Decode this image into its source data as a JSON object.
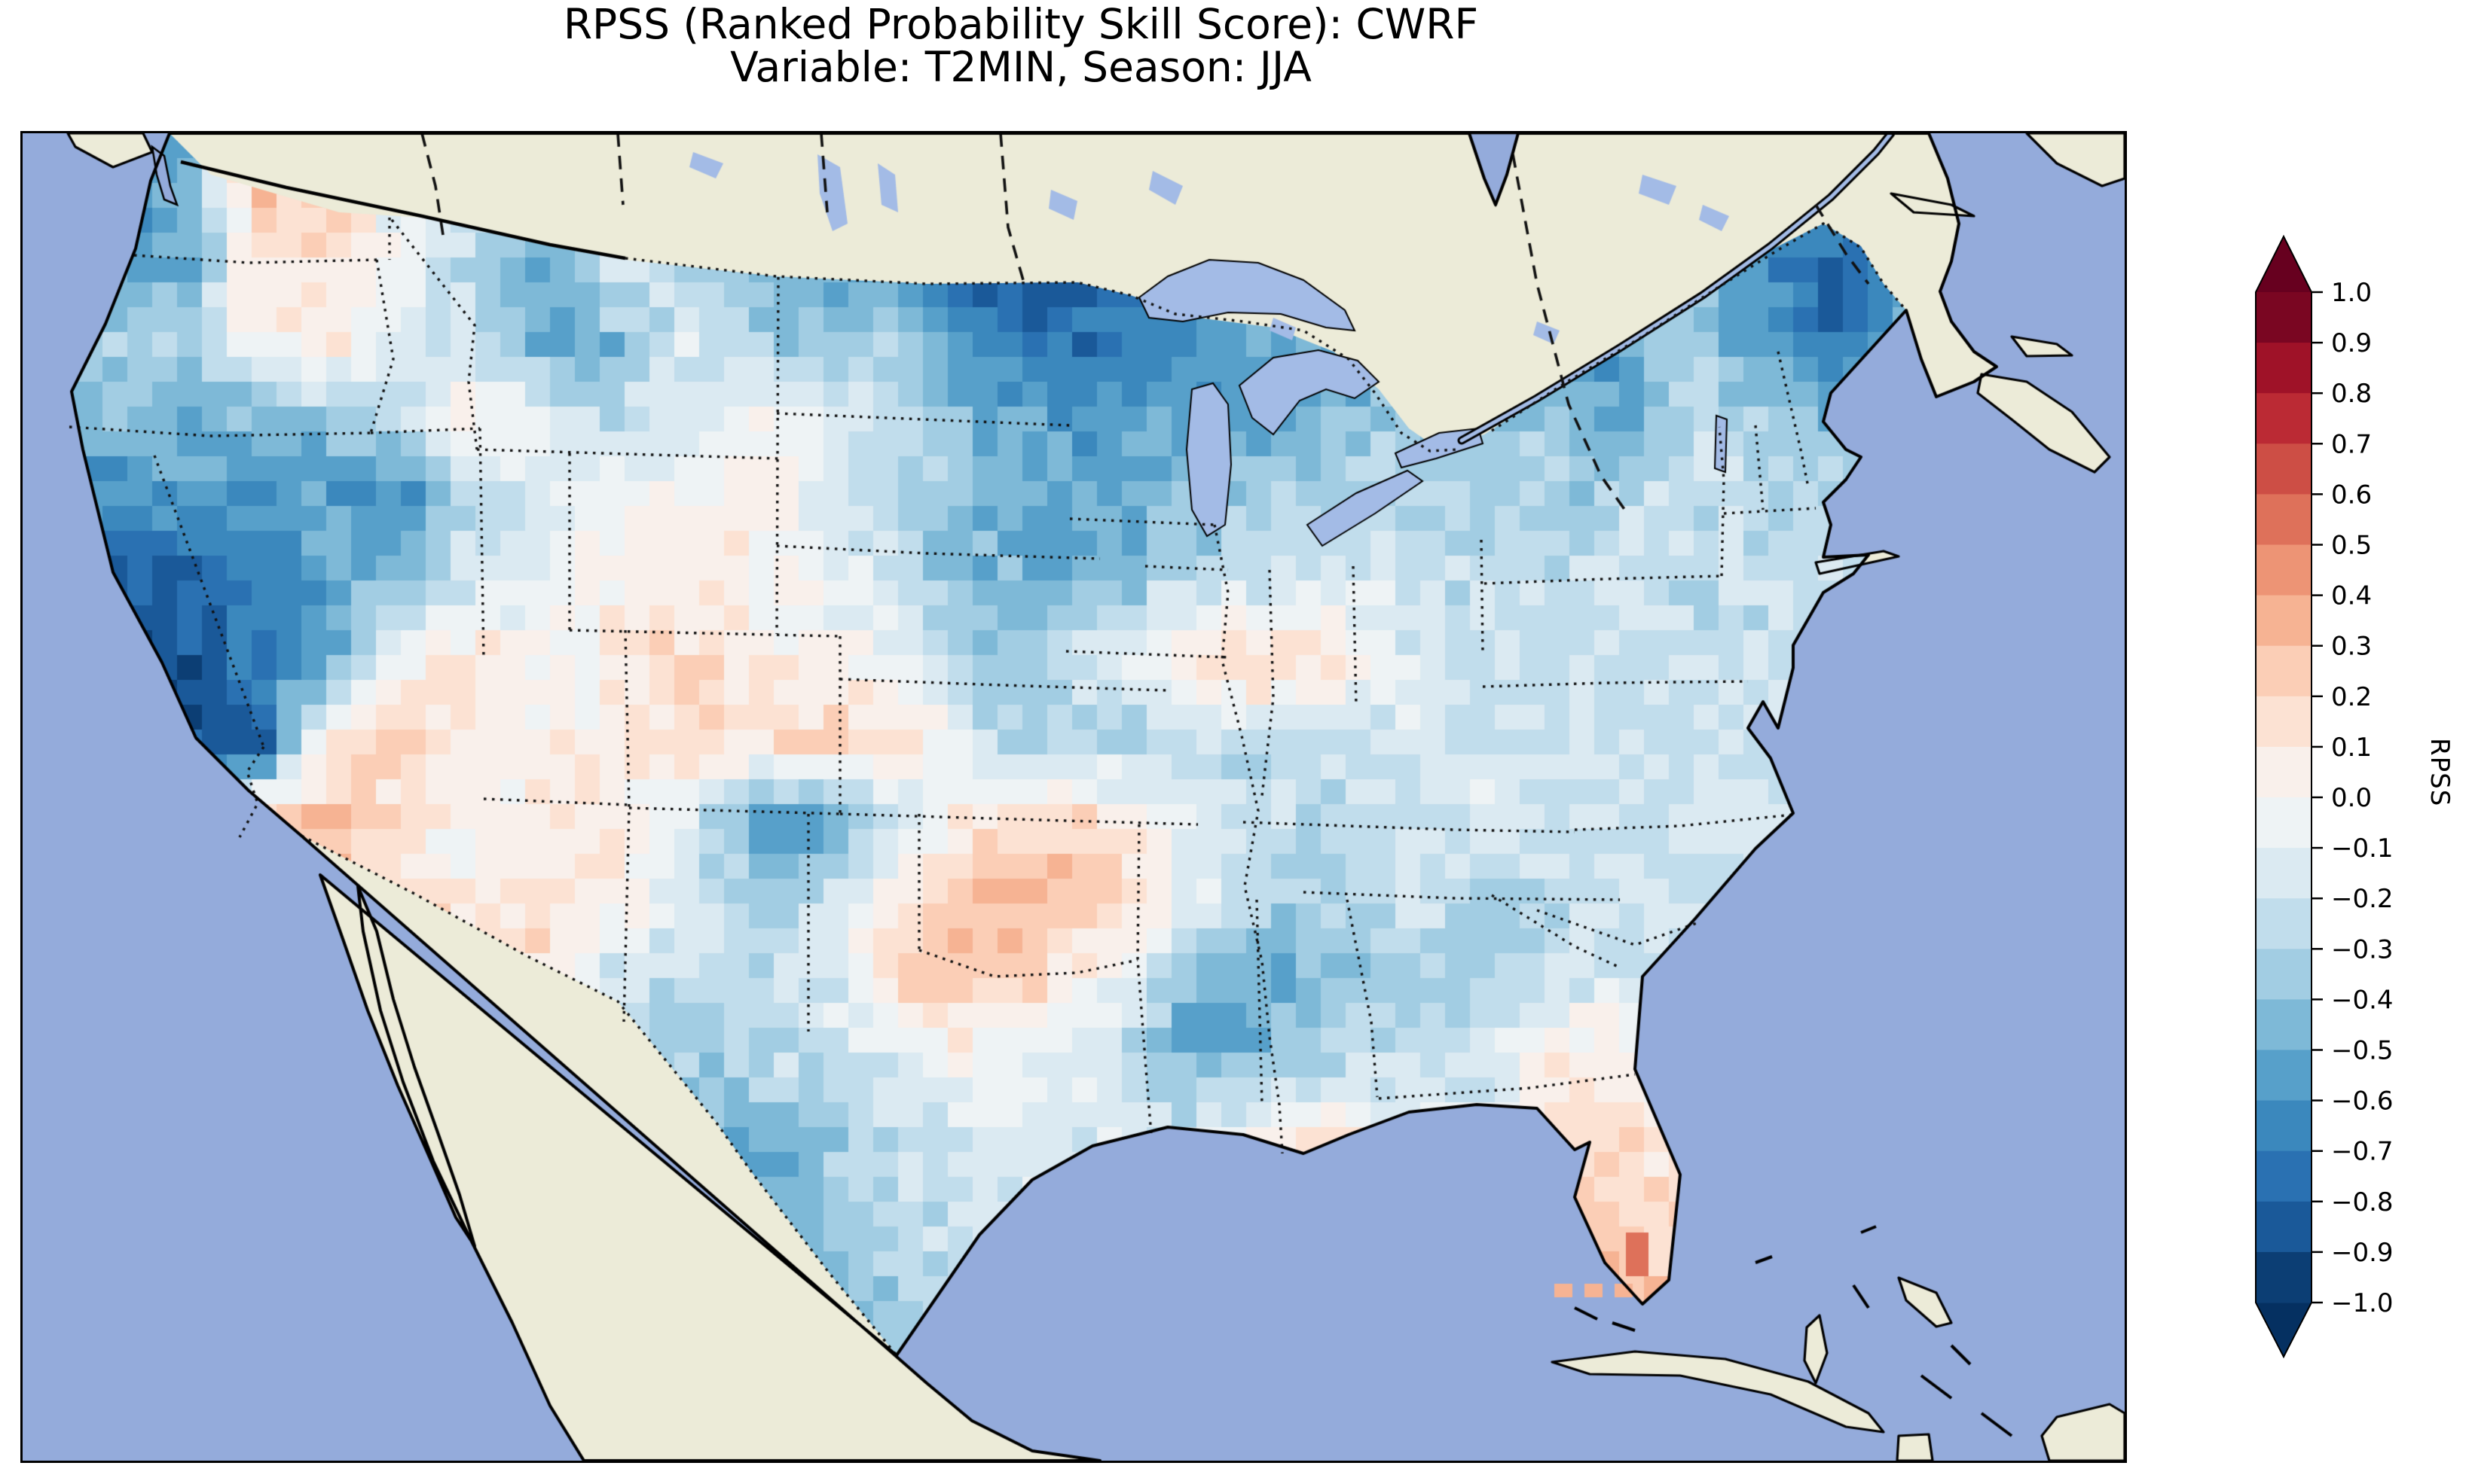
{
  "title": {
    "line1": "RPSS (Ranked Probability Skill Score): CWRF",
    "line2": "Variable: T2MIN, Season: JJA"
  },
  "chart_data": {
    "type": "heatmap",
    "metric": "RPSS (Ranked Probability Skill Score)",
    "model": "CWRF",
    "variable": "T2MIN",
    "season": "JJA",
    "region": "Continental United States (CONUS) on a North-America map",
    "colorbar": {
      "label": "RPSS",
      "vmin": -1.0,
      "vmax": 1.0,
      "bin_size": 0.1,
      "extend": "both",
      "colormap": "RdBu_r (diverging, red = positive skill, blue = negative skill)",
      "ticks": [
        "1.0",
        "0.9",
        "0.8",
        "0.7",
        "0.6",
        "0.5",
        "0.4",
        "0.3",
        "0.2",
        "0.1",
        "0.0",
        "−0.1",
        "−0.2",
        "−0.3",
        "−0.4",
        "−0.5",
        "−0.6",
        "−0.7",
        "−0.8",
        "−0.9",
        "−1.0"
      ],
      "bin_colors_low_to_high": [
        "#0C3E74",
        "#1A5999",
        "#2A71B2",
        "#3B88BD",
        "#57A0CA",
        "#7EB9D7",
        "#A2CDE3",
        "#C1DDEC",
        "#DBEAF2",
        "#EEF3F5",
        "#F9F0EB",
        "#FCE2D3",
        "#FBCEB6",
        "#F6B393",
        "#ED9475",
        "#DE715A",
        "#CD4E45",
        "#BB2A34",
        "#9F1228",
        "#7A0622"
      ],
      "arrow_color_top": "#67001f",
      "arrow_color_bottom": "#053061"
    },
    "map_colors": {
      "ocean": "#94ABDB",
      "land": "#ECEBD8",
      "lake": "#A3BBE6",
      "coastline": "#000000"
    },
    "grid": {
      "description": "Approximate RPSS values on a coarse 26x15 grid over CONUS (row 0 = north, col 0 = Pacific coast); the map shows these values binned in 0.1 steps. Mostly negative (blue) with strongest negative skill over California, the northern border of ND/MN, upper Midwest, Maine, south Texas and Mississippi/Alabama; weak positive (orange) patches over eastern WA/OR, Arizona/New Mexico, Oklahoma/Arkansas, Tennessee and peninsular Florida.",
      "cols": 26,
      "rows": 15,
      "values": [
        [
          -0.55,
          0.3,
          0.25,
          -0.05,
          -0.1,
          -0.35,
          -0.3,
          -0.45,
          -0.5,
          -0.55,
          -0.8,
          -0.95,
          -0.9,
          -0.85,
          -0.6,
          -0.5,
          -0.45,
          -0.4,
          -0.4,
          -0.3,
          -0.3,
          -0.45,
          -0.5,
          -0.55,
          -0.5,
          -0.4
        ],
        [
          -0.5,
          0.1,
          0.15,
          -0.1,
          -0.3,
          -0.5,
          -0.1,
          -0.3,
          -0.45,
          -0.5,
          -0.7,
          -0.85,
          -0.8,
          -0.75,
          -0.65,
          -0.55,
          -0.5,
          -0.4,
          -0.35,
          -0.35,
          -0.4,
          -0.35,
          -0.65,
          -0.8,
          -0.7,
          -0.5
        ],
        [
          -0.35,
          0.05,
          0.1,
          -0.15,
          -0.2,
          -0.55,
          -0.45,
          -0.15,
          -0.3,
          -0.4,
          -0.3,
          -0.6,
          -0.8,
          -0.7,
          -0.6,
          -0.5,
          -0.55,
          -0.45,
          -0.4,
          -0.45,
          -0.55,
          -0.3,
          -0.55,
          -0.75,
          -0.5,
          -0.4
        ],
        [
          -0.45,
          -0.45,
          -0.4,
          -0.25,
          0.1,
          -0.1,
          -0.25,
          -0.15,
          -0.05,
          -0.15,
          -0.3,
          -0.45,
          -0.55,
          -0.6,
          -0.5,
          -0.55,
          -0.45,
          -0.4,
          -0.45,
          -0.35,
          -0.6,
          -0.25,
          -0.3,
          -0.45,
          -0.4,
          -0.35
        ],
        [
          -0.6,
          -0.6,
          -0.55,
          -0.65,
          -0.3,
          -0.15,
          0.0,
          -0.05,
          0.05,
          -0.15,
          -0.3,
          -0.45,
          -0.55,
          -0.5,
          -0.45,
          -0.35,
          -0.3,
          -0.25,
          -0.3,
          -0.35,
          -0.3,
          -0.2,
          -0.3,
          -0.3,
          -0.3,
          -0.3
        ],
        [
          -0.8,
          -0.65,
          -0.5,
          -0.4,
          -0.15,
          -0.1,
          0.05,
          0.1,
          0.05,
          -0.1,
          -0.25,
          -0.45,
          -0.5,
          -0.4,
          -0.3,
          -0.2,
          -0.15,
          -0.2,
          -0.25,
          -0.2,
          -0.25,
          -0.25,
          -0.25,
          -0.25,
          -0.25,
          -0.25
        ],
        [
          -0.9,
          -0.7,
          -0.55,
          0.0,
          0.1,
          -0.05,
          0.1,
          0.15,
          0.1,
          0.0,
          -0.1,
          -0.35,
          -0.3,
          -0.15,
          0.2,
          0.25,
          0.1,
          -0.15,
          -0.25,
          -0.2,
          -0.2,
          -0.2,
          -0.2,
          -0.2,
          -0.2,
          -0.2
        ],
        [
          -0.85,
          -0.9,
          0.15,
          0.25,
          0.1,
          0.05,
          0.0,
          0.2,
          0.15,
          0.25,
          0.2,
          -0.2,
          -0.35,
          -0.3,
          -0.25,
          -0.3,
          -0.25,
          -0.15,
          -0.2,
          -0.2,
          -0.2,
          -0.2,
          -0.2,
          -0.2,
          -0.2,
          -0.2
        ],
        [
          -0.7,
          0.2,
          0.3,
          0.1,
          0.0,
          0.1,
          0.05,
          -0.1,
          -0.6,
          -0.55,
          -0.2,
          0.1,
          0.2,
          0.1,
          -0.1,
          -0.25,
          -0.3,
          -0.2,
          -0.15,
          -0.2,
          -0.2,
          -0.2,
          -0.2,
          -0.2,
          -0.2,
          -0.2
        ],
        [
          -0.5,
          0.1,
          0.25,
          0.15,
          0.1,
          0.2,
          0.1,
          -0.15,
          -0.35,
          -0.2,
          0.15,
          0.3,
          0.35,
          0.25,
          -0.1,
          -0.3,
          -0.35,
          -0.2,
          -0.25,
          -0.3,
          -0.2,
          -0.2,
          -0.2,
          -0.2,
          -0.2,
          -0.2
        ],
        [
          -0.4,
          0.1,
          0.15,
          0.1,
          0.15,
          0.1,
          -0.2,
          -0.3,
          -0.25,
          -0.15,
          0.2,
          0.25,
          0.15,
          -0.05,
          -0.45,
          -0.55,
          -0.4,
          -0.3,
          -0.35,
          -0.25,
          -0.15,
          -0.2,
          -0.2,
          -0.2,
          -0.2,
          -0.2
        ],
        [
          -0.35,
          0.05,
          0.1,
          0.1,
          0.1,
          0.0,
          -0.25,
          -0.35,
          -0.3,
          -0.2,
          -0.1,
          0.0,
          -0.1,
          -0.2,
          -0.5,
          -0.45,
          -0.3,
          -0.25,
          -0.2,
          0.1,
          0.05,
          -0.15,
          -0.2,
          -0.2,
          -0.2,
          -0.2
        ],
        [
          -0.3,
          0.0,
          0.05,
          0.05,
          0.05,
          -0.1,
          -0.3,
          -0.5,
          -0.45,
          -0.35,
          -0.2,
          -0.15,
          -0.1,
          -0.15,
          -0.2,
          0.1,
          0.15,
          0.0,
          -0.1,
          0.1,
          0.15,
          0.1,
          -0.2,
          -0.2,
          -0.2,
          -0.2
        ],
        [
          -0.3,
          0.0,
          0.0,
          0.0,
          0.0,
          -0.15,
          -0.4,
          -0.65,
          -0.55,
          -0.4,
          -0.25,
          -0.2,
          -0.2,
          -0.2,
          -0.2,
          -0.2,
          0.05,
          0.1,
          0.2,
          0.25,
          0.2,
          0.15,
          -0.2,
          -0.2,
          -0.2,
          -0.2
        ],
        [
          -0.3,
          0.0,
          0.0,
          0.0,
          0.0,
          -0.2,
          -0.5,
          -0.7,
          -0.6,
          -0.45,
          -0.3,
          -0.2,
          -0.2,
          -0.2,
          -0.2,
          -0.2,
          0.1,
          0.2,
          0.35,
          0.45,
          0.35,
          0.25,
          -0.2,
          -0.2,
          -0.2,
          -0.2
        ]
      ]
    },
    "extra_cells": {
      "description": "isolated pcolormesh cells near the Florida Keys / south-Florida tip",
      "florida_keys_values": [
        0.3,
        0.3,
        0.35
      ],
      "florida_tip_value": 0.5
    }
  }
}
